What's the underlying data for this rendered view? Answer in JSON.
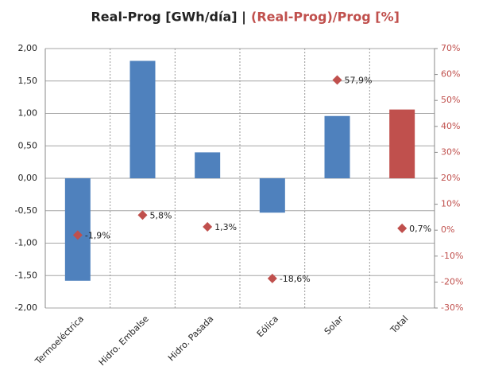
{
  "chart_data": {
    "type": "bar_scatter",
    "title": "Real-Prog [GWh/día] |",
    "y2_title": "(Real-Prog)/Prog [%]",
    "categories": [
      "Termoeléctrica",
      "Hidro. Embalse",
      "Hidro. Pasada",
      "Eólica",
      "Solar",
      "Total"
    ],
    "series": [
      {
        "type": "bar",
        "colors": [
          "#4f81bd",
          "#4f81bd",
          "#4f81bd",
          "#4f81bd",
          "#4f81bd",
          "#c0504d"
        ],
        "values": [
          -1.58,
          1.81,
          0.4,
          -0.53,
          0.96,
          1.06
        ]
      },
      {
        "type": "scatter",
        "axis": "y2",
        "color": "#c0504d",
        "values": [
          -1.9,
          5.8,
          1.3,
          -18.6,
          57.9,
          0.7
        ],
        "value_labels": [
          "-1,9%",
          "5,8%",
          "1,3%",
          "-18,6%",
          "57,9%",
          "0,7%"
        ]
      }
    ],
    "ylim": [
      -2,
      2
    ],
    "yticks": [
      {
        "value": -2,
        "label": "-2,00"
      },
      {
        "value": -1.5,
        "label": "-1,50"
      },
      {
        "value": -1,
        "label": "-1,00"
      },
      {
        "value": -0.5,
        "label": "-0,50"
      },
      {
        "value": 0,
        "label": "0,00"
      },
      {
        "value": 0.5,
        "label": "0,50"
      },
      {
        "value": 1,
        "label": "1,00"
      },
      {
        "value": 1.5,
        "label": "1,50"
      },
      {
        "value": 2,
        "label": "2,00"
      }
    ],
    "y2lim": [
      -30,
      70
    ],
    "y2ticks": [
      {
        "value": -30,
        "label": "-30%"
      },
      {
        "value": -20,
        "label": "-20%"
      },
      {
        "value": -10,
        "label": "-10%"
      },
      {
        "value": 0,
        "label": "0%"
      },
      {
        "value": 10,
        "label": "10%"
      },
      {
        "value": 20,
        "label": "20%"
      },
      {
        "value": 30,
        "label": "30%"
      },
      {
        "value": 40,
        "label": "40%"
      },
      {
        "value": 50,
        "label": "50%"
      },
      {
        "value": 60,
        "label": "60%"
      },
      {
        "value": 70,
        "label": "70%"
      }
    ],
    "grid": true
  }
}
